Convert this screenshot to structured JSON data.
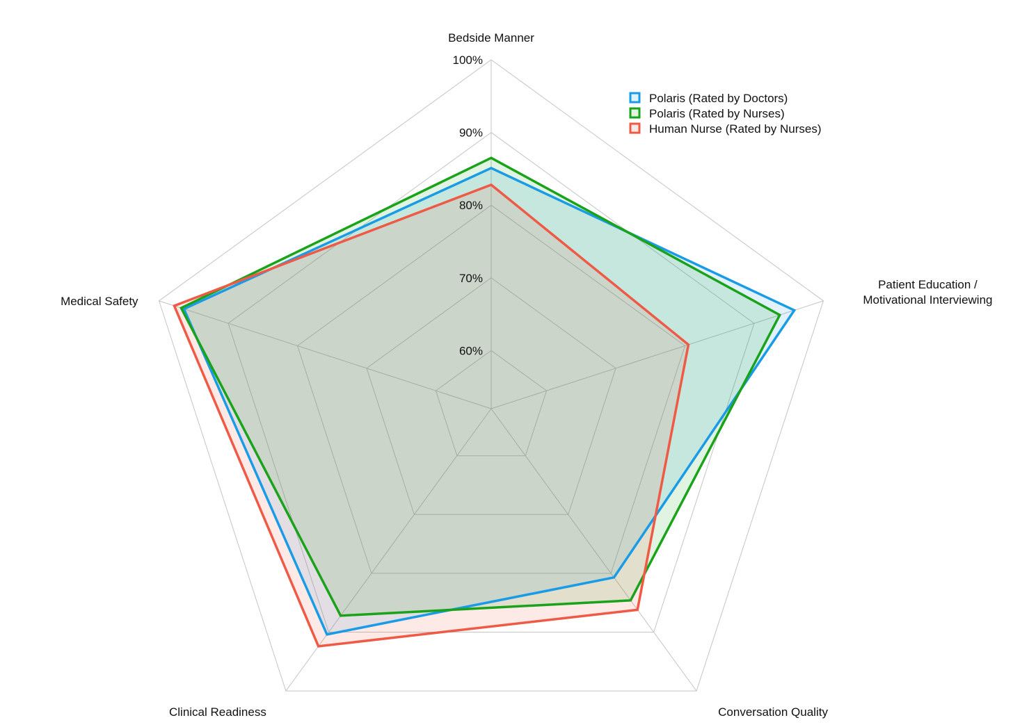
{
  "chart_data": {
    "type": "radar",
    "title": "",
    "axes": [
      "Bedside Manner",
      "Patient Education / Motivational Interviewing",
      "Conversation Quality",
      "Clinical Readiness",
      "Medical Safety"
    ],
    "axis_label_lines": [
      [
        "Bedside Manner"
      ],
      [
        "Patient Education /",
        "Motivational Interviewing"
      ],
      [
        "Conversation Quality"
      ],
      [
        "Clinical Readiness"
      ],
      [
        "Medical Safety"
      ]
    ],
    "range": [
      52,
      100
    ],
    "tick_values": [
      60,
      70,
      80,
      90,
      100
    ],
    "tick_labels": [
      "60%",
      "70%",
      "80%",
      "90%",
      "100%"
    ],
    "grid": true,
    "legend_position": "top-right",
    "series": [
      {
        "name": "Polaris (Rated by Doctors)",
        "color": "#1a9be6",
        "fill": "rgba(26,155,230,0.13)",
        "values": [
          85.1,
          95.8,
          80.7,
          90.4,
          96.4
        ]
      },
      {
        "name": "Polaris (Rated by Nurses)",
        "color": "#1aa31a",
        "fill": "rgba(26,163,26,0.13)",
        "values": [
          86.5,
          93.7,
          84.6,
          87.2,
          96.8
        ]
      },
      {
        "name": "Human Nurse (Rated by Nurses)",
        "color": "#ee5a45",
        "fill": "rgba(238,90,69,0.13)",
        "values": [
          82.8,
          80.5,
          86.2,
          92.4,
          97.8
        ]
      }
    ]
  }
}
